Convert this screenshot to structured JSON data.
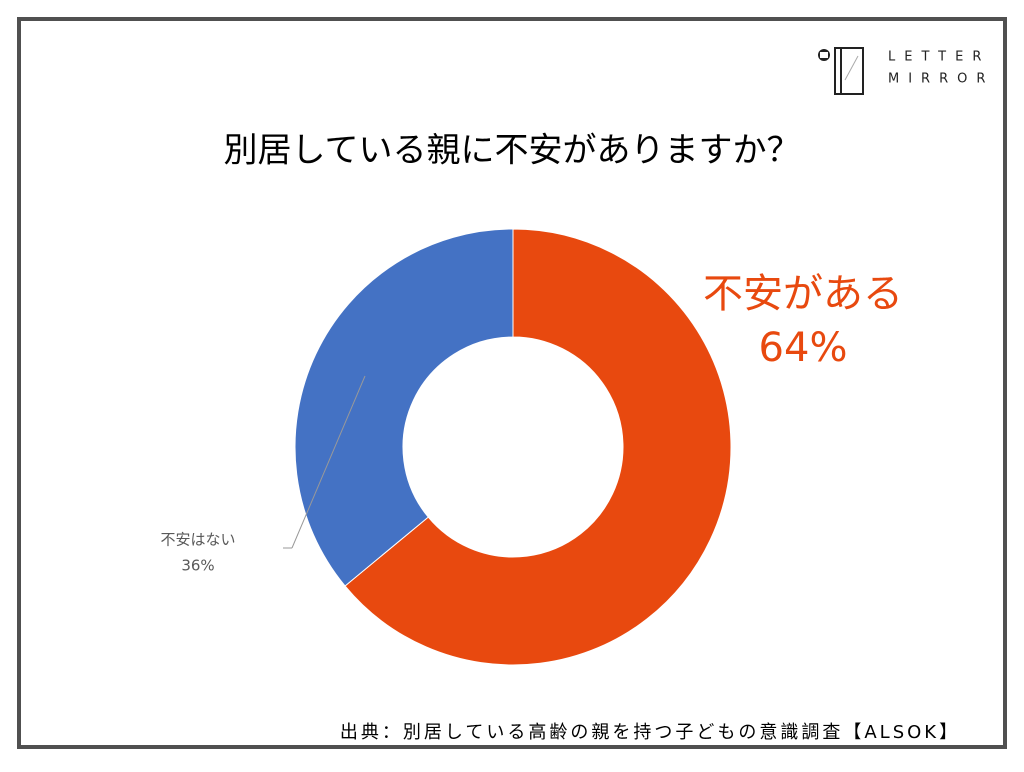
{
  "chart_data": {
    "type": "donut",
    "title": "別居している親に不安がありますか？",
    "categories": [
      "不安がある",
      "不安はない"
    ],
    "values": [
      64,
      36
    ],
    "value_labels": [
      "64%",
      "36%"
    ],
    "colors": [
      "#e8490f",
      "#4472c4"
    ]
  },
  "logo": {
    "line1": "LETTER",
    "line2": "MIRROR"
  },
  "source": "出典：別居している高齢の親を持つ子どもの意識調査【ALSOK】"
}
